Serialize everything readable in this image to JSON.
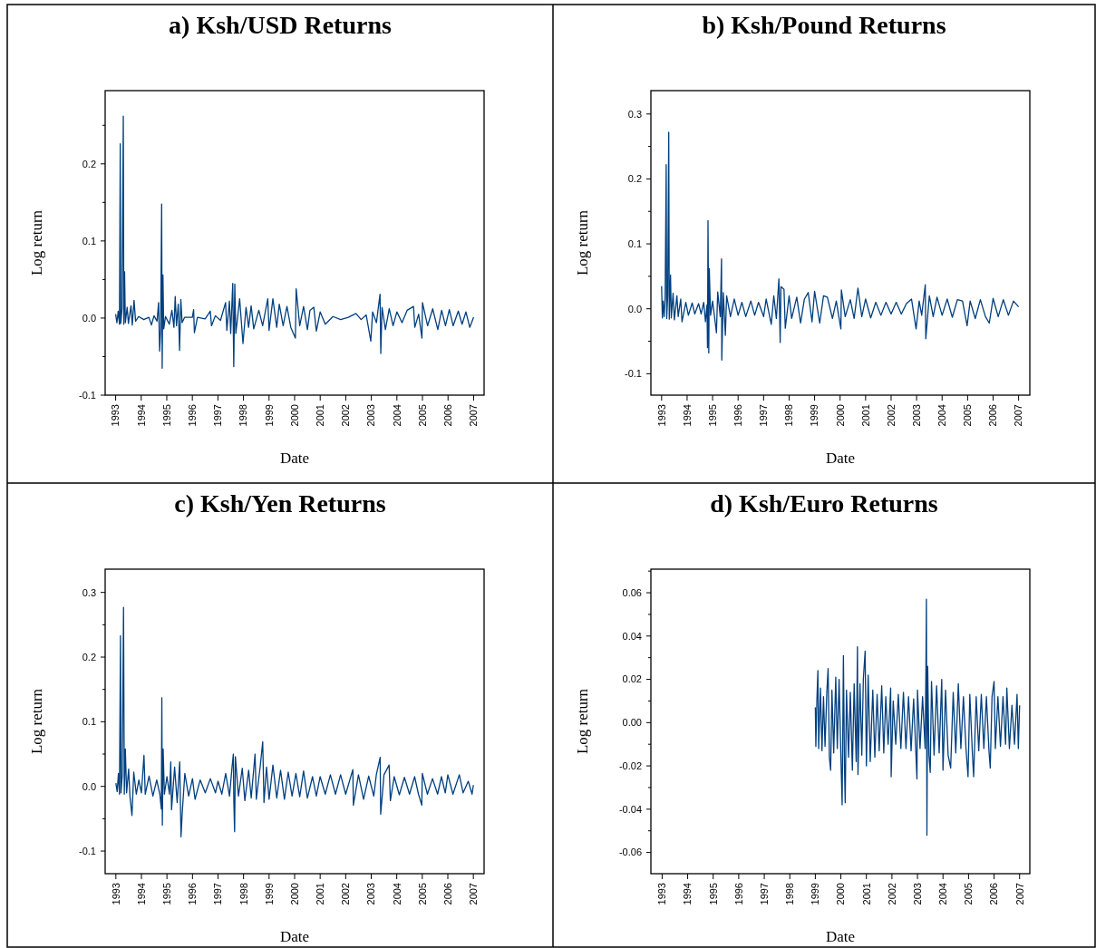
{
  "chart_data": [
    {
      "type": "line",
      "title": "a)  Ksh/USD Returns",
      "xlabel": "Date",
      "ylabel": "Log return",
      "xlim": [
        1992.59,
        2007.41
      ],
      "ylim": [
        -0.1,
        0.295
      ],
      "xticks": [
        1993,
        1994,
        1995,
        1996,
        1997,
        1998,
        1999,
        2000,
        2001,
        2002,
        2003,
        2004,
        2005,
        2006,
        2007
      ],
      "yticks": [
        -0.1,
        {
          "value": -0.05,
          "label": null
        },
        {
          "value": 0,
          "label": "0.0"
        },
        {
          "value": 0.05,
          "label": null
        },
        0.1,
        {
          "value": 0.15,
          "label": null
        },
        0.2,
        {
          "value": 0.25,
          "label": null
        }
      ],
      "x": [
        1993.0,
        1993.05,
        1993.1,
        1993.15,
        1993.18,
        1993.2,
        1993.25,
        1993.3,
        1993.32,
        1993.35,
        1993.38,
        1993.45,
        1993.5,
        1993.6,
        1993.65,
        1993.72,
        1993.78,
        1993.9,
        1994.1,
        1994.3,
        1994.4,
        1994.5,
        1994.62,
        1994.68,
        1994.72,
        1994.76,
        1994.8,
        1994.82,
        1994.85,
        1994.88,
        1994.95,
        1995.1,
        1995.2,
        1995.28,
        1995.33,
        1995.38,
        1995.45,
        1995.5,
        1995.55,
        1995.6,
        1995.7,
        1996.0,
        1996.05,
        1996.08,
        1996.2,
        1996.5,
        1996.7,
        1996.75,
        1996.9,
        1997.1,
        1997.3,
        1997.35,
        1997.45,
        1997.5,
        1997.58,
        1997.62,
        1997.66,
        1997.7,
        1997.85,
        1997.98,
        1998.1,
        1998.2,
        1998.3,
        1998.4,
        1998.6,
        1998.75,
        1998.95,
        1999.0,
        1999.15,
        1999.3,
        1999.4,
        1999.55,
        1999.7,
        1999.85,
        2000.03,
        2000.06,
        2000.2,
        2000.35,
        2000.5,
        2000.6,
        2000.75,
        2000.85,
        2001.0,
        2001.2,
        2001.5,
        2001.8,
        2002.1,
        2002.4,
        2002.6,
        2002.8,
        2002.98,
        2003.05,
        2003.2,
        2003.34,
        2003.37,
        2003.42,
        2003.55,
        2003.7,
        2003.85,
        2004.0,
        2004.2,
        2004.4,
        2004.65,
        2004.7,
        2004.85,
        2004.98,
        2005.0,
        2005.2,
        2005.4,
        2005.6,
        2005.75,
        2005.9,
        2006.05,
        2006.2,
        2006.4,
        2006.55,
        2006.7,
        2006.85,
        2007.0
      ],
      "series": [
        {
          "color": "#003f7f",
          "values": [
            0.005,
            -0.006,
            0.009,
            -0.008,
            0.226,
            -0.007,
            0.012,
            0.262,
            -0.008,
            0.06,
            -0.006,
            0.014,
            -0.007,
            0.016,
            -0.009,
            0.023,
            -0.004,
            0.002,
            -0.002,
            0.001,
            -0.009,
            0.003,
            -0.004,
            0.02,
            -0.043,
            -0.015,
            0.148,
            -0.065,
            0.056,
            -0.014,
            0.002,
            -0.008,
            0.01,
            -0.012,
            0.028,
            -0.01,
            0.018,
            -0.042,
            0.024,
            -0.006,
            0.001,
            0.001,
            0.011,
            -0.019,
            0.001,
            -0.001,
            0.009,
            -0.01,
            0.003,
            -0.003,
            0.02,
            -0.016,
            0.022,
            -0.02,
            0.045,
            -0.063,
            0.044,
            -0.02,
            0.025,
            -0.033,
            0.014,
            -0.012,
            0.016,
            -0.014,
            0.01,
            -0.01,
            0.025,
            -0.016,
            0.025,
            -0.012,
            0.018,
            -0.01,
            0.015,
            -0.012,
            -0.026,
            0.038,
            -0.01,
            0.015,
            -0.015,
            0.01,
            0.014,
            -0.017,
            0.008,
            -0.008,
            0.002,
            -0.002,
            0.001,
            0.006,
            -0.002,
            0.004,
            -0.03,
            0.008,
            -0.006,
            0.031,
            -0.046,
            0.014,
            -0.015,
            0.012,
            -0.01,
            0.008,
            -0.006,
            0.01,
            0.015,
            -0.012,
            0.005,
            -0.026,
            0.02,
            -0.01,
            0.012,
            -0.015,
            0.01,
            -0.01,
            0.011,
            -0.01,
            0.009,
            -0.008,
            0.008,
            -0.012,
            0.001
          ]
        }
      ]
    },
    {
      "type": "line",
      "title": "b)  Ksh/Pound Returns",
      "xlabel": "Date",
      "ylabel": "Log return",
      "xlim": [
        1992.58,
        2007.44
      ],
      "ylim": [
        -0.133,
        0.336
      ],
      "xticks": [
        1993,
        1994,
        1995,
        1996,
        1997,
        1998,
        1999,
        2000,
        2001,
        2002,
        2003,
        2004,
        2005,
        2006,
        2007
      ],
      "yticks": [
        {
          "value": -0.1,
          "label": "-0.1"
        },
        {
          "value": -0.05,
          "label": null
        },
        {
          "value": 0,
          "label": "0.0"
        },
        {
          "value": 0.05,
          "label": null
        },
        0.1,
        {
          "value": 0.15,
          "label": null
        },
        0.2,
        {
          "value": 0.25,
          "label": null
        },
        0.3
      ],
      "x": [
        1993.0,
        1993.03,
        1993.06,
        1993.1,
        1993.14,
        1993.18,
        1993.2,
        1993.24,
        1993.28,
        1993.3,
        1993.35,
        1993.38,
        1993.45,
        1993.5,
        1993.6,
        1993.65,
        1993.75,
        1993.8,
        1993.95,
        1994.05,
        1994.2,
        1994.3,
        1994.45,
        1994.55,
        1994.65,
        1994.72,
        1994.78,
        1994.8,
        1994.82,
        1994.85,
        1994.87,
        1994.92,
        1995.0,
        1995.1,
        1995.15,
        1995.2,
        1995.3,
        1995.35,
        1995.36,
        1995.42,
        1995.5,
        1995.55,
        1995.7,
        1995.85,
        1996.0,
        1996.15,
        1996.3,
        1996.5,
        1996.65,
        1996.8,
        1997.0,
        1997.1,
        1997.3,
        1997.4,
        1997.5,
        1997.6,
        1997.65,
        1997.68,
        1997.8,
        1997.85,
        1998.0,
        1998.1,
        1998.3,
        1998.45,
        1998.6,
        1998.75,
        1998.9,
        1999.0,
        1999.2,
        1999.35,
        1999.5,
        1999.7,
        1999.85,
        2000.03,
        2000.05,
        2000.2,
        2000.4,
        2000.55,
        2000.7,
        2000.85,
        2001.0,
        2001.2,
        2001.4,
        2001.6,
        2001.8,
        2002.0,
        2002.2,
        2002.4,
        2002.6,
        2002.8,
        2002.98,
        2003.1,
        2003.2,
        2003.34,
        2003.36,
        2003.5,
        2003.65,
        2003.8,
        2004.0,
        2004.2,
        2004.4,
        2004.6,
        2004.8,
        2004.98,
        2005.1,
        2005.3,
        2005.5,
        2005.7,
        2005.85,
        2006.0,
        2006.2,
        2006.4,
        2006.6,
        2006.8,
        2007.0
      ],
      "series": [
        {
          "color": "#003f7f",
          "values": [
            0.035,
            -0.014,
            0.012,
            -0.012,
            0.018,
            0.222,
            -0.015,
            0.02,
            0.272,
            -0.016,
            0.052,
            -0.014,
            0.024,
            -0.017,
            0.02,
            -0.012,
            0.015,
            -0.02,
            0.01,
            -0.01,
            0.009,
            -0.008,
            0.008,
            -0.008,
            0.01,
            -0.02,
            0.006,
            -0.06,
            0.136,
            -0.068,
            0.062,
            -0.01,
            0.012,
            -0.02,
            -0.037,
            0.026,
            -0.012,
            0.077,
            -0.079,
            0.025,
            -0.041,
            0.02,
            -0.012,
            0.015,
            -0.01,
            0.01,
            -0.012,
            0.012,
            -0.01,
            0.01,
            -0.012,
            0.015,
            -0.024,
            0.02,
            -0.015,
            0.046,
            -0.052,
            0.034,
            0.03,
            -0.03,
            0.02,
            -0.015,
            0.018,
            -0.022,
            0.015,
            0.025,
            -0.02,
            0.027,
            -0.022,
            0.02,
            0.018,
            -0.015,
            0.012,
            -0.031,
            0.029,
            -0.012,
            0.014,
            -0.015,
            0.032,
            -0.012,
            0.015,
            -0.014,
            0.01,
            -0.01,
            0.01,
            -0.008,
            0.01,
            -0.008,
            0.008,
            0.015,
            -0.031,
            0.012,
            -0.01,
            0.037,
            -0.046,
            0.02,
            -0.012,
            0.018,
            -0.01,
            0.015,
            -0.013,
            0.014,
            0.012,
            -0.026,
            0.012,
            -0.015,
            0.014,
            -0.012,
            -0.022,
            0.016,
            -0.012,
            0.014,
            -0.01,
            0.012,
            0.003
          ]
        }
      ]
    },
    {
      "type": "line",
      "title": "c)  Ksh/Yen Returns",
      "xlabel": "Date",
      "ylabel": "Log return",
      "xlim": [
        1992.58,
        2007.42
      ],
      "ylim": [
        -0.135,
        0.336
      ],
      "xticks": [
        1993,
        1994,
        1995,
        1996,
        1997,
        1998,
        1999,
        2000,
        2001,
        2002,
        2003,
        2004,
        2005,
        2006,
        2007
      ],
      "yticks": [
        {
          "value": -0.1,
          "label": "-0.1"
        },
        {
          "value": -0.05,
          "label": null
        },
        {
          "value": 0,
          "label": "0.0"
        },
        {
          "value": 0.05,
          "label": null
        },
        0.1,
        {
          "value": 0.15,
          "label": null
        },
        0.2,
        {
          "value": 0.25,
          "label": null
        },
        0.3
      ],
      "x": [
        1993.0,
        1993.05,
        1993.1,
        1993.14,
        1993.18,
        1993.2,
        1993.25,
        1993.3,
        1993.33,
        1993.37,
        1993.42,
        1993.5,
        1993.55,
        1993.63,
        1993.7,
        1993.8,
        1993.9,
        1994.0,
        1994.1,
        1994.15,
        1994.3,
        1994.45,
        1994.6,
        1994.72,
        1994.78,
        1994.8,
        1994.82,
        1994.85,
        1994.9,
        1995.0,
        1995.1,
        1995.15,
        1995.18,
        1995.3,
        1995.4,
        1995.5,
        1995.55,
        1995.6,
        1995.7,
        1995.85,
        1996.0,
        1996.1,
        1996.3,
        1996.5,
        1996.7,
        1996.9,
        1997.0,
        1997.15,
        1997.3,
        1997.45,
        1997.55,
        1997.6,
        1997.62,
        1997.65,
        1997.68,
        1997.8,
        1997.95,
        1998.05,
        1998.2,
        1998.3,
        1998.45,
        1998.5,
        1998.65,
        1998.75,
        1998.8,
        1998.9,
        1999.0,
        1999.15,
        1999.3,
        1999.45,
        1999.6,
        1999.75,
        1999.9,
        2000.05,
        2000.2,
        2000.35,
        2000.5,
        2000.7,
        2000.85,
        2001.0,
        2001.2,
        2001.4,
        2001.6,
        2001.8,
        2002.0,
        2002.28,
        2002.3,
        2002.5,
        2002.7,
        2002.9,
        2003.1,
        2003.2,
        2003.35,
        2003.37,
        2003.5,
        2003.7,
        2003.75,
        2003.9,
        2004.1,
        2004.3,
        2004.5,
        2004.7,
        2004.85,
        2004.98,
        2005.0,
        2005.2,
        2005.4,
        2005.6,
        2005.75,
        2005.9,
        2006.0,
        2006.2,
        2006.45,
        2006.6,
        2006.8,
        2006.95,
        2007.0
      ],
      "series": [
        {
          "color": "#003f7f",
          "values": [
            0.005,
            -0.008,
            0.02,
            -0.012,
            0.233,
            -0.01,
            0.018,
            0.277,
            -0.012,
            0.058,
            -0.01,
            0.027,
            -0.015,
            -0.045,
            0.022,
            -0.012,
            0.01,
            -0.01,
            0.048,
            -0.012,
            0.016,
            -0.015,
            0.01,
            -0.012,
            -0.035,
            0.137,
            -0.06,
            0.058,
            -0.012,
            0.015,
            -0.012,
            0.038,
            -0.036,
            0.03,
            -0.025,
            0.038,
            -0.078,
            -0.04,
            0.02,
            -0.015,
            0.012,
            -0.02,
            0.01,
            -0.01,
            0.012,
            -0.01,
            0.008,
            -0.012,
            0.02,
            -0.015,
            0.03,
            0.05,
            -0.025,
            -0.07,
            0.046,
            -0.015,
            0.028,
            -0.022,
            0.025,
            -0.018,
            0.05,
            -0.02,
            0.03,
            0.069,
            -0.025,
            0.03,
            -0.02,
            0.033,
            -0.018,
            0.025,
            -0.02,
            0.022,
            -0.015,
            0.02,
            -0.016,
            0.024,
            -0.018,
            0.015,
            -0.015,
            0.015,
            -0.012,
            0.018,
            -0.012,
            0.018,
            -0.012,
            0.026,
            -0.029,
            0.018,
            -0.02,
            0.016,
            -0.015,
            0.018,
            0.045,
            -0.043,
            0.018,
            0.033,
            -0.022,
            0.015,
            -0.013,
            0.014,
            -0.012,
            0.015,
            -0.012,
            -0.029,
            0.02,
            -0.012,
            0.012,
            -0.012,
            0.015,
            -0.01,
            0.018,
            -0.012,
            0.018,
            -0.01,
            0.008,
            -0.012,
            0.002
          ]
        }
      ]
    },
    {
      "type": "line",
      "title": "d)  Ksh/Euro Returns",
      "xlabel": "Date",
      "ylabel": "Log return",
      "xlim": [
        1992.56,
        2007.4
      ],
      "ylim": [
        -0.0698,
        0.0709
      ],
      "xticks": [
        1993,
        1994,
        1995,
        1996,
        1997,
        1998,
        1999,
        2000,
        2001,
        2002,
        2003,
        2004,
        2005,
        2006,
        2007
      ],
      "yticks": [
        {
          "value": -0.06,
          "label": "-0.06"
        },
        {
          "value": -0.05,
          "label": null
        },
        {
          "value": -0.04,
          "label": "-0.04"
        },
        {
          "value": -0.03,
          "label": null
        },
        {
          "value": -0.02,
          "label": "-0.02"
        },
        {
          "value": -0.01,
          "label": null
        },
        {
          "value": 0,
          "label": "0.00"
        },
        {
          "value": 0.01,
          "label": null
        },
        0.02,
        {
          "value": 0.03,
          "label": null
        },
        0.04,
        {
          "value": 0.05,
          "label": null
        },
        0.06,
        {
          "value": 0.07,
          "label": null
        }
      ],
      "x": [
        1999.0,
        1999.02,
        1999.06,
        1999.1,
        1999.13,
        1999.2,
        1999.26,
        1999.32,
        1999.38,
        1999.45,
        1999.5,
        1999.55,
        1999.6,
        1999.65,
        1999.72,
        1999.8,
        1999.86,
        1999.93,
        2000.0,
        2000.05,
        2000.1,
        2000.14,
        2000.17,
        2000.22,
        2000.3,
        2000.37,
        2000.45,
        2000.52,
        2000.6,
        2000.65,
        2000.67,
        2000.75,
        2000.82,
        2000.88,
        2000.95,
        2001.0,
        2001.07,
        2001.15,
        2001.25,
        2001.33,
        2001.42,
        2001.5,
        2001.6,
        2001.68,
        2001.76,
        2001.85,
        2001.95,
        2001.97,
        2002.05,
        2002.15,
        2002.25,
        2002.35,
        2002.45,
        2002.55,
        2002.65,
        2002.75,
        2002.85,
        2002.98,
        2003.0,
        2003.1,
        2003.2,
        2003.3,
        2003.33,
        2003.35,
        2003.37,
        2003.4,
        2003.45,
        2003.5,
        2003.55,
        2003.65,
        2003.75,
        2003.85,
        2003.95,
        2004.0,
        2004.1,
        2004.2,
        2004.3,
        2004.4,
        2004.5,
        2004.6,
        2004.7,
        2004.8,
        2004.9,
        2004.98,
        2005.05,
        2005.15,
        2005.2,
        2005.3,
        2005.4,
        2005.5,
        2005.6,
        2005.7,
        2005.8,
        2005.85,
        2005.92,
        2006.0,
        2006.05,
        2006.15,
        2006.25,
        2006.35,
        2006.45,
        2006.5,
        2006.6,
        2006.7,
        2006.8,
        2006.9,
        2006.95,
        2007.0
      ],
      "series": [
        {
          "color": "#003f7f",
          "values": [
            0.007,
            -0.011,
            0.01,
            0.024,
            -0.012,
            0.016,
            -0.013,
            0.012,
            -0.011,
            0.014,
            0.025,
            -0.016,
            -0.022,
            0.015,
            -0.014,
            0.021,
            -0.012,
            0.02,
            -0.015,
            -0.038,
            0.031,
            -0.02,
            -0.037,
            0.015,
            -0.016,
            0.014,
            -0.022,
            0.018,
            -0.018,
            0.035,
            -0.024,
            0.018,
            -0.015,
            0.02,
            0.033,
            -0.02,
            0.022,
            -0.018,
            0.015,
            -0.016,
            0.013,
            -0.013,
            0.017,
            -0.014,
            0.012,
            -0.01,
            0.016,
            -0.025,
            0.01,
            -0.01,
            0.013,
            -0.012,
            0.014,
            -0.012,
            0.012,
            -0.013,
            0.011,
            -0.026,
            0.015,
            -0.012,
            0.012,
            -0.012,
            0.023,
            0.057,
            -0.052,
            0.026,
            -0.015,
            -0.023,
            0.019,
            -0.015,
            0.017,
            -0.014,
            0.02,
            -0.022,
            0.015,
            -0.015,
            -0.021,
            0.014,
            -0.014,
            0.018,
            -0.012,
            0.012,
            -0.012,
            -0.025,
            0.013,
            -0.014,
            -0.025,
            0.012,
            -0.013,
            0.013,
            -0.012,
            0.012,
            -0.013,
            -0.021,
            0.012,
            0.019,
            -0.012,
            0.012,
            -0.011,
            0.012,
            -0.01,
            0.016,
            -0.012,
            0.008,
            -0.01,
            0.013,
            -0.012,
            0.008
          ]
        }
      ]
    }
  ]
}
